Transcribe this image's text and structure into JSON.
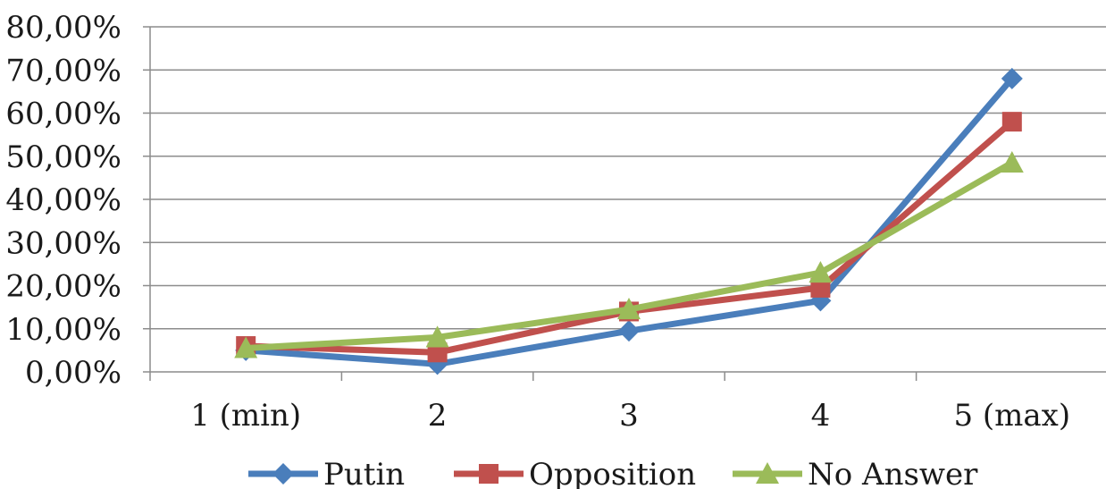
{
  "chart_data": {
    "type": "line",
    "title": "",
    "xlabel": "",
    "ylabel": "",
    "categories": [
      "1 (min)",
      "2",
      "3",
      "4",
      "5 (max)"
    ],
    "y_ticks": [
      "0,00%",
      "10,00%",
      "20,00%",
      "30,00%",
      "40,00%",
      "50,00%",
      "60,00%",
      "70,00%",
      "80,00%"
    ],
    "ylim": [
      0,
      80
    ],
    "grid": true,
    "legend": "bottom",
    "series": [
      {
        "name": "Putin",
        "color": "#4a7ebb",
        "marker": "diamond",
        "values": [
          5.0,
          1.8,
          9.5,
          16.5,
          68.0
        ]
      },
      {
        "name": "Opposition",
        "color": "#c0504d",
        "marker": "square",
        "values": [
          6.0,
          4.5,
          14.0,
          19.5,
          58.0
        ]
      },
      {
        "name": "No Answer",
        "color": "#9bbb59",
        "marker": "triangle",
        "values": [
          5.5,
          8.0,
          14.5,
          23.0,
          48.5
        ]
      }
    ]
  }
}
